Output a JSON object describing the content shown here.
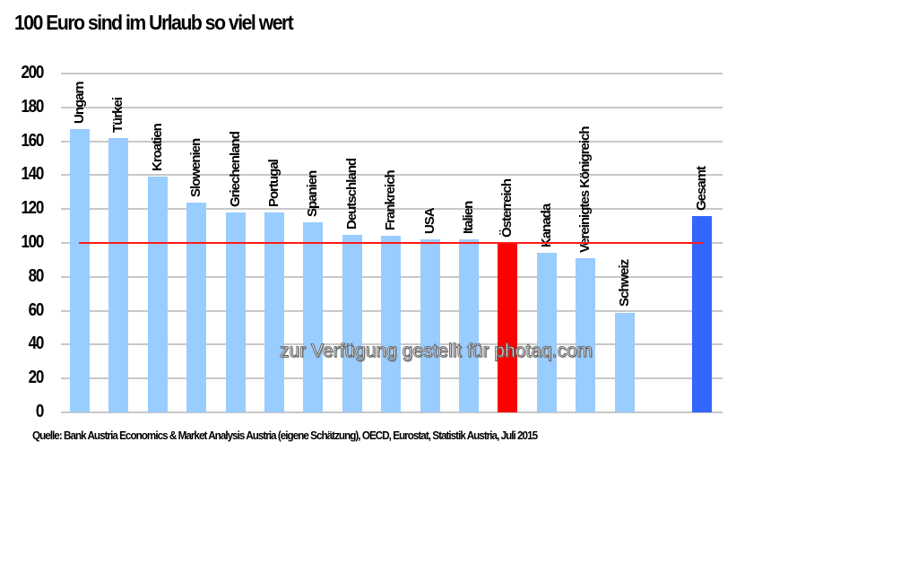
{
  "title": "100 Euro sind im Urlaub so viel wert",
  "source": "Quelle: Bank Austria Economics & Market Analysis Austria (eigene Schätzung), OECD, Eurostat, Statistik Austria, Juli 2015",
  "watermark": "zur Verfügung gestellt für photaq.com",
  "colors": {
    "default_bar": "#99ccff",
    "highlight_bar": "#ff0000",
    "total_bar": "#3366ff",
    "reference_line": "#ff1a1a",
    "grid": "#c8c8c8"
  },
  "y_ticks": [
    "200",
    "180",
    "160",
    "140",
    "120",
    "100",
    "80",
    "60",
    "40",
    "20",
    "0"
  ],
  "chart_data": {
    "type": "bar",
    "title": "100 Euro sind im Urlaub so viel wert",
    "xlabel": "",
    "ylabel": "",
    "ylim": [
      0,
      200
    ],
    "yticks": [
      0,
      20,
      40,
      60,
      80,
      100,
      120,
      140,
      160,
      180,
      200
    ],
    "grid": true,
    "legend": null,
    "reference_line": {
      "y": 100,
      "color": "#ff1a1a"
    },
    "categories": [
      "Ungarn",
      "Türkei",
      "Kroatien",
      "Slowenien",
      "Griechenland",
      "Portugal",
      "Spanien",
      "Deutschland",
      "Frankreich",
      "USA",
      "Italien",
      "Österreich",
      "Kanada",
      "Vereinigtes Königreich",
      "Schweiz",
      "Gesamt"
    ],
    "values": [
      167,
      162,
      139,
      124,
      118,
      118,
      112,
      105,
      104,
      102,
      102,
      100,
      94,
      91,
      59,
      116
    ],
    "bar_colors": [
      "#99ccff",
      "#99ccff",
      "#99ccff",
      "#99ccff",
      "#99ccff",
      "#99ccff",
      "#99ccff",
      "#99ccff",
      "#99ccff",
      "#99ccff",
      "#99ccff",
      "#ff0000",
      "#99ccff",
      "#99ccff",
      "#99ccff",
      "#3366ff"
    ],
    "annotations": [
      "zur Verfügung gestellt für photaq.com"
    ],
    "source": "Quelle: Bank Austria Economics & Market Analysis Austria (eigene Schätzung), OECD, Eurostat, Statistik Austria, Juli 2015"
  }
}
